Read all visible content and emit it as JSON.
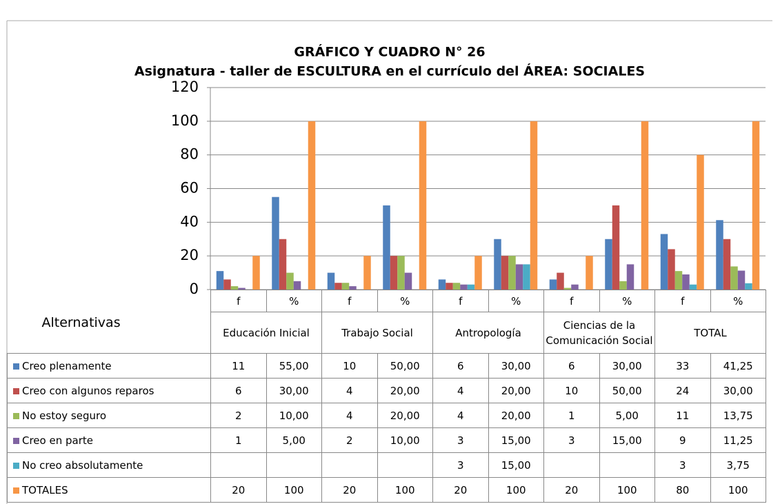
{
  "chart_data": {
    "type": "bar",
    "title": "GRÁFICO Y CUADRO N° 26",
    "subtitle": "Asignatura - taller de ESCULTURA en el currículo del ÁREA: SOCIALES",
    "row_header": "Alternativas",
    "categories": [
      "f",
      "%",
      "f",
      "%",
      "f",
      "%",
      "f",
      "%",
      "f",
      "%"
    ],
    "groups": [
      "Educación Inicial",
      "Trabajo Social",
      "Antropología",
      "Ciencias de la Comunicación Social",
      "TOTAL"
    ],
    "ylim": [
      0,
      120
    ],
    "yticks": [
      0,
      20,
      40,
      60,
      80,
      100,
      120
    ],
    "grid": true,
    "series": [
      {
        "name": "Creo plenamente",
        "color": "#4f81bd",
        "values": [
          11,
          55,
          10,
          50,
          6,
          30,
          6,
          30,
          33,
          41.25
        ],
        "value_labels": [
          "11",
          "55,00",
          "10",
          "50,00",
          "6",
          "30,00",
          "6",
          "30,00",
          "33",
          "41,25"
        ]
      },
      {
        "name": "Creo con algunos reparos",
        "color": "#c0504d",
        "values": [
          6,
          30,
          4,
          20,
          4,
          20,
          10,
          50,
          24,
          30
        ],
        "value_labels": [
          "6",
          "30,00",
          "4",
          "20,00",
          "4",
          "20,00",
          "10",
          "50,00",
          "24",
          "30,00"
        ]
      },
      {
        "name": "No estoy seguro",
        "color": "#9bbb59",
        "values": [
          2,
          10,
          4,
          20,
          4,
          20,
          1,
          5,
          11,
          13.75
        ],
        "value_labels": [
          "2",
          "10,00",
          "4",
          "20,00",
          "4",
          "20,00",
          "1",
          "5,00",
          "11",
          "13,75"
        ]
      },
      {
        "name": "Creo en parte",
        "color": "#8064a2",
        "values": [
          1,
          5,
          2,
          10,
          3,
          15,
          3,
          15,
          9,
          11.25
        ],
        "value_labels": [
          "1",
          "5,00",
          "2",
          "10,00",
          "3",
          "15,00",
          "3",
          "15,00",
          "9",
          "11,25"
        ]
      },
      {
        "name": "No creo absolutamente",
        "color": "#4bacc6",
        "values": [
          null,
          null,
          null,
          null,
          3,
          15,
          null,
          null,
          3,
          3.75
        ],
        "value_labels": [
          null,
          null,
          null,
          null,
          "3",
          "15,00",
          null,
          null,
          "3",
          "3,75"
        ]
      },
      {
        "name": "TOTALES",
        "color": "#f79646",
        "values": [
          20,
          100,
          20,
          100,
          20,
          100,
          20,
          100,
          80,
          100
        ],
        "value_labels": [
          "20",
          "100",
          "20",
          "100",
          "20",
          "100",
          "20",
          "100",
          "80",
          "100"
        ]
      }
    ]
  }
}
